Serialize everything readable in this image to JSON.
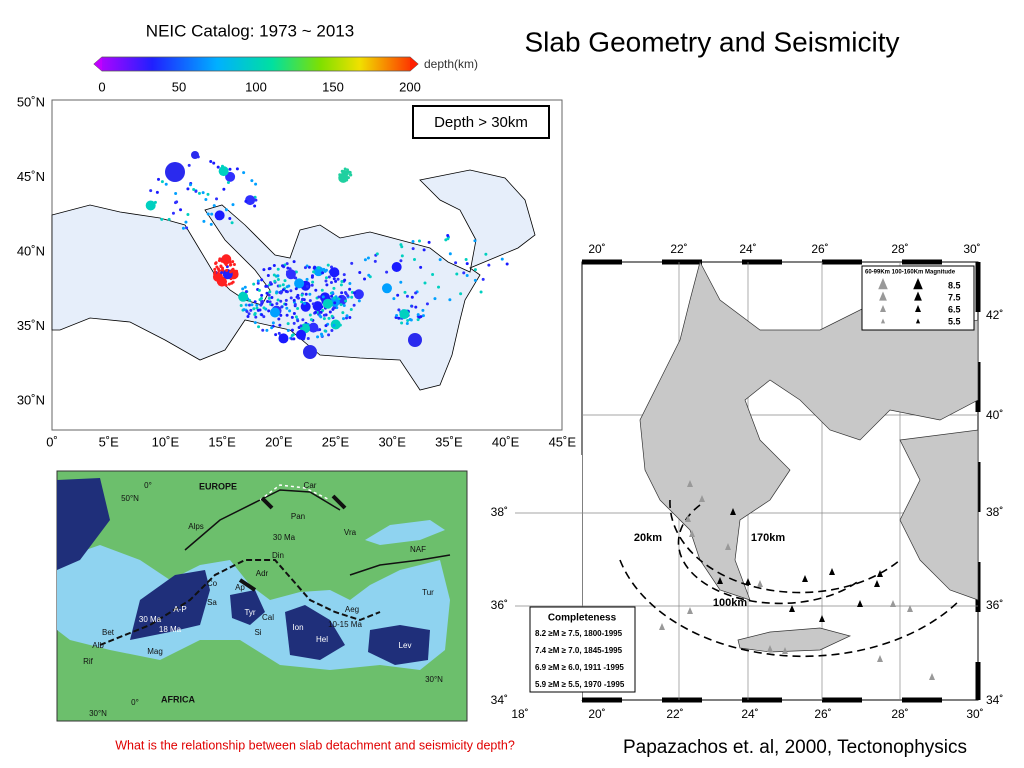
{
  "title": "Slab Geometry and Seismicity",
  "colorbar": {
    "title": "NEIC Catalog: 1973 ~ 2013",
    "unit": "depth(km)",
    "ticks": [
      0,
      50,
      100,
      150,
      200
    ]
  },
  "map1": {
    "badge": "Depth > 30km",
    "lat_labels": [
      "50˚N",
      "45˚N",
      "40˚N",
      "35˚N",
      "30˚N"
    ],
    "lon_labels": [
      "0˚",
      "5˚E",
      "10˚E",
      "15˚E",
      "20˚E",
      "25˚E",
      "30˚E",
      "35˚E",
      "40˚E",
      "45˚E"
    ]
  },
  "map2": {
    "labels": [
      "EUROPE",
      "Car",
      "Pan",
      "Vra",
      "Alps",
      "30 Ma",
      "Din",
      "Adr",
      "NAF",
      "Tur",
      "Aeg",
      "10-15 Ma",
      "Co",
      "Sa",
      "A-P",
      "Ap",
      "Tyr",
      "Cal",
      "Si",
      "Ion",
      "Hel",
      "Lev",
      "30 Ma",
      "18 Ma",
      "Bet",
      "Alb",
      "Rif",
      "Mag",
      "AFRICA",
      "0°",
      "50°N",
      "0°",
      "30°N",
      "30°N"
    ]
  },
  "map3": {
    "top_ticks": [
      "20˚",
      "22˚",
      "24˚",
      "26˚",
      "28˚",
      "30˚"
    ],
    "bottom_ticks": [
      "18˚",
      "20˚",
      "22˚",
      "24˚",
      "26˚",
      "28˚",
      "30˚"
    ],
    "left_ticks": [
      "38˚",
      "36˚",
      "34˚"
    ],
    "right_ticks": [
      "42˚",
      "40˚",
      "38˚",
      "36˚",
      "34˚"
    ],
    "legend": {
      "header": "60-99Km 100-160Km Magnitude",
      "magnitudes": [
        8.5,
        7.5,
        6.5,
        5.5
      ]
    },
    "labels": [
      "20km",
      "170km",
      "100km"
    ],
    "completeness": {
      "title": "Completeness",
      "rows": [
        "8.2 ≥M ≥ 7.5, 1800-1995",
        "7.4 ≥M ≥ 7.0, 1845-1995",
        "6.9 ≥M ≥ 6.0, 1911 -1995",
        "5.9 ≥M ≥ 5.5, 1970 -1995"
      ]
    }
  },
  "caption": "What is the relationship between slab detachment and seismicity depth?",
  "citation": "Papazachos et. al, 2000, Tectonophysics"
}
